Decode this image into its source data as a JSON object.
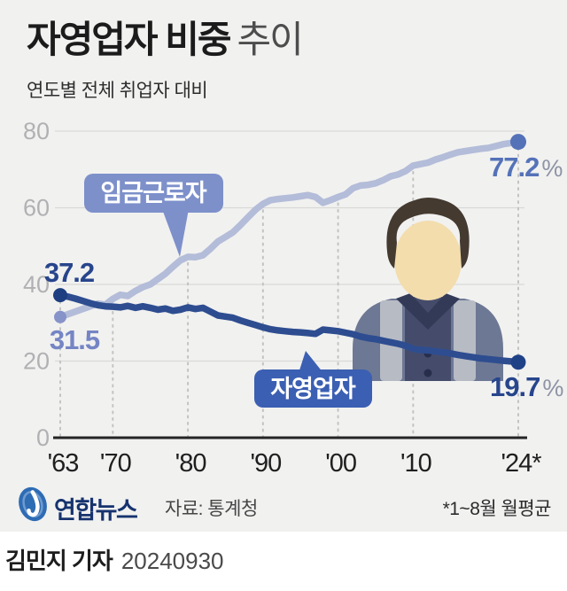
{
  "header": {
    "title_bold": "자영업자 비중",
    "title_light": "추이",
    "subtitle": "연도별 전체 취업자 대비"
  },
  "footer": {
    "agency": "연합뉴스",
    "source": "자료: 통계청",
    "note": "*1~8월 월평균"
  },
  "byline": {
    "reporter": "김민지 기자",
    "date": "20240930"
  },
  "colors": {
    "background": "#f1f1f0",
    "wage_line": "#b3bcd8",
    "wage_bubble": "#7d90ca",
    "self_line": "#2e4d90",
    "self_bubble": "#3b5fb2",
    "value_navy": "#27458c",
    "value_periwinkle": "#7585c4",
    "value_blue": "#5472b8",
    "percent_gray": "#8d93a5",
    "grid": "#d9d9d8",
    "axis": "#242424"
  },
  "chart_data": {
    "type": "line",
    "title": "자영업자 비중 추이",
    "subtitle": "연도별 전체 취업자 대비",
    "ylim": [
      0,
      80
    ],
    "yticks": [
      0,
      20,
      40,
      60,
      80
    ],
    "grid": "horizontal solid + vertical dotted droplines at labeled years",
    "legend_position": "bubble callouts on lines",
    "xticks": [
      {
        "year": 1963,
        "label": "'63"
      },
      {
        "year": 1970,
        "label": "'70"
      },
      {
        "year": 1980,
        "label": "'80"
      },
      {
        "year": 1990,
        "label": "'90"
      },
      {
        "year": 2000,
        "label": "'00"
      },
      {
        "year": 2010,
        "label": "'10"
      },
      {
        "year": 2024,
        "label": "'24*"
      }
    ],
    "annotations": {
      "self_start": "37.2",
      "wage_start": "31.5",
      "wage_end": "77.2",
      "self_end": "19.7",
      "pct": "%"
    },
    "series": [
      {
        "key": "wage-workers",
        "name": "임금근로자",
        "color": "#b3bcd8",
        "dot_start": "#8693c9",
        "dot_end": "#5472b8",
        "dot_r_start": 7,
        "dot_r_end": 9,
        "points": [
          [
            1963,
            31.5
          ],
          [
            1964,
            32.2
          ],
          [
            1965,
            32.9
          ],
          [
            1966,
            33.6
          ],
          [
            1967,
            34.3
          ],
          [
            1968,
            35.0
          ],
          [
            1969,
            34.7
          ],
          [
            1970,
            36.2
          ],
          [
            1971,
            37.3
          ],
          [
            1972,
            37.0
          ],
          [
            1973,
            38.3
          ],
          [
            1974,
            39.3
          ],
          [
            1975,
            40.0
          ],
          [
            1976,
            41.4
          ],
          [
            1977,
            42.8
          ],
          [
            1978,
            44.6
          ],
          [
            1979,
            46.3
          ],
          [
            1980,
            47.2
          ],
          [
            1981,
            47.1
          ],
          [
            1982,
            47.6
          ],
          [
            1983,
            49.3
          ],
          [
            1984,
            51.2
          ],
          [
            1985,
            52.4
          ],
          [
            1986,
            53.6
          ],
          [
            1987,
            55.5
          ],
          [
            1988,
            57.5
          ],
          [
            1989,
            59.5
          ],
          [
            1990,
            61.0
          ],
          [
            1991,
            62.0
          ],
          [
            1992,
            62.3
          ],
          [
            1993,
            62.5
          ],
          [
            1994,
            62.7
          ],
          [
            1995,
            63.0
          ],
          [
            1996,
            63.3
          ],
          [
            1997,
            62.8
          ],
          [
            1998,
            61.3
          ],
          [
            1999,
            62.0
          ],
          [
            2000,
            62.8
          ],
          [
            2001,
            63.5
          ],
          [
            2002,
            65.1
          ],
          [
            2003,
            65.8
          ],
          [
            2004,
            66.0
          ],
          [
            2005,
            66.4
          ],
          [
            2006,
            67.2
          ],
          [
            2007,
            68.2
          ],
          [
            2008,
            68.7
          ],
          [
            2009,
            69.6
          ],
          [
            2010,
            71.0
          ],
          [
            2011,
            71.4
          ],
          [
            2012,
            71.8
          ],
          [
            2013,
            72.6
          ],
          [
            2014,
            73.2
          ],
          [
            2015,
            73.9
          ],
          [
            2016,
            74.5
          ],
          [
            2017,
            74.8
          ],
          [
            2018,
            75.1
          ],
          [
            2019,
            75.4
          ],
          [
            2020,
            75.6
          ],
          [
            2021,
            76.1
          ],
          [
            2022,
            76.6
          ],
          [
            2023,
            76.9
          ],
          [
            2024,
            77.2
          ]
        ]
      },
      {
        "key": "self-employed",
        "name": "자영업자",
        "color": "#2e4d90",
        "dot_start": "#1d3e80",
        "dot_end": "#1f4287",
        "dot_r_start": 8,
        "dot_r_end": 8.5,
        "points": [
          [
            1963,
            37.2
          ],
          [
            1964,
            36.8
          ],
          [
            1965,
            36.3
          ],
          [
            1966,
            35.7
          ],
          [
            1967,
            35.1
          ],
          [
            1968,
            34.6
          ],
          [
            1969,
            34.3
          ],
          [
            1970,
            34.2
          ],
          [
            1971,
            34.0
          ],
          [
            1972,
            34.4
          ],
          [
            1973,
            33.9
          ],
          [
            1974,
            34.3
          ],
          [
            1975,
            33.9
          ],
          [
            1976,
            33.4
          ],
          [
            1977,
            33.7
          ],
          [
            1978,
            33.1
          ],
          [
            1979,
            33.4
          ],
          [
            1980,
            34.0
          ],
          [
            1981,
            33.6
          ],
          [
            1982,
            33.9
          ],
          [
            1983,
            32.9
          ],
          [
            1984,
            31.9
          ],
          [
            1985,
            31.6
          ],
          [
            1986,
            31.3
          ],
          [
            1987,
            30.6
          ],
          [
            1988,
            30.0
          ],
          [
            1989,
            29.4
          ],
          [
            1990,
            28.8
          ],
          [
            1991,
            28.3
          ],
          [
            1992,
            28.0
          ],
          [
            1993,
            27.8
          ],
          [
            1994,
            27.6
          ],
          [
            1995,
            27.5
          ],
          [
            1996,
            27.3
          ],
          [
            1997,
            27.1
          ],
          [
            1998,
            28.2
          ],
          [
            1999,
            28.0
          ],
          [
            2000,
            27.8
          ],
          [
            2001,
            27.4
          ],
          [
            2002,
            27.0
          ],
          [
            2003,
            26.4
          ],
          [
            2004,
            26.0
          ],
          [
            2005,
            25.7
          ],
          [
            2006,
            25.3
          ],
          [
            2007,
            24.9
          ],
          [
            2008,
            24.5
          ],
          [
            2009,
            24.0
          ],
          [
            2010,
            23.2
          ],
          [
            2011,
            22.9
          ],
          [
            2012,
            22.8
          ],
          [
            2013,
            22.5
          ],
          [
            2014,
            22.3
          ],
          [
            2015,
            22.0
          ],
          [
            2016,
            21.6
          ],
          [
            2017,
            21.3
          ],
          [
            2018,
            21.0
          ],
          [
            2019,
            20.7
          ],
          [
            2020,
            20.5
          ],
          [
            2021,
            20.3
          ],
          [
            2022,
            20.1
          ],
          [
            2023,
            19.9
          ],
          [
            2024,
            19.7
          ]
        ]
      }
    ]
  }
}
